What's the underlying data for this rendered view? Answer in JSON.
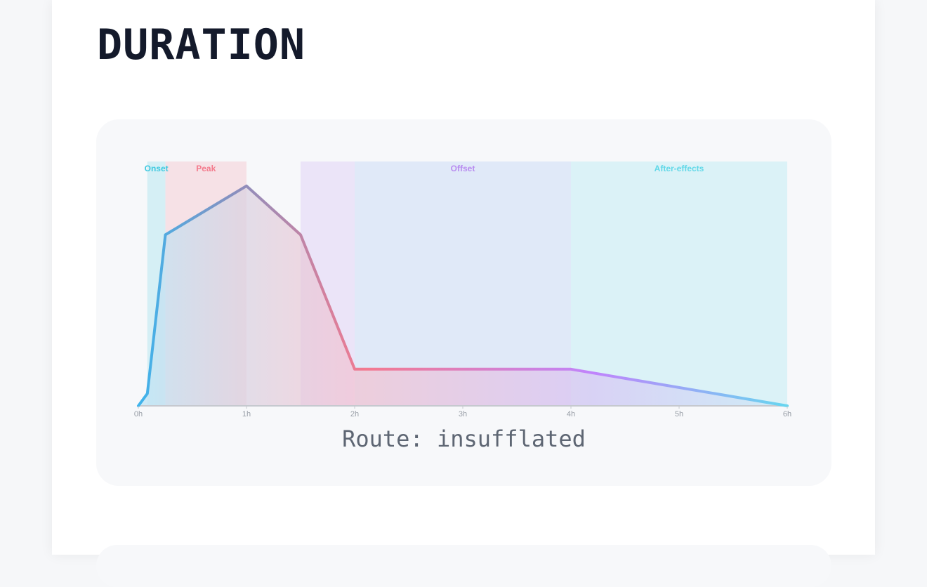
{
  "page": {
    "title": "DURATION"
  },
  "chart_data": {
    "type": "area",
    "x_unit": "hours",
    "xlim": [
      0,
      6
    ],
    "ylim": [
      0,
      100
    ],
    "x_ticks": [
      {
        "value": 0,
        "label": "0h"
      },
      {
        "value": 1,
        "label": "1h"
      },
      {
        "value": 2,
        "label": "2h"
      },
      {
        "value": 3,
        "label": "3h"
      },
      {
        "value": 4,
        "label": "4h"
      },
      {
        "value": 5,
        "label": "5h"
      },
      {
        "value": 6,
        "label": "6h"
      }
    ],
    "phases": [
      {
        "label": "Onset",
        "start": 0.083,
        "end": 0.25,
        "color": "#3ec9e0",
        "label_color": "#3ec9e0"
      },
      {
        "label": "Peak",
        "start": 0.25,
        "end": 1.0,
        "color": "#f47a8c",
        "label_color": "#f47a8c"
      },
      {
        "label": "",
        "start": 1.5,
        "end": 2.0,
        "color": "#b98cf0",
        "label_color": "#b98cf0"
      },
      {
        "label": "Offset",
        "start": 2.0,
        "end": 4.0,
        "color": "#7aa8ee",
        "label_color": "#b98cf0"
      },
      {
        "label": "After-effects",
        "start": 4.0,
        "end": 6.0,
        "color": "#61d8e8",
        "label_color": "#61d8e8"
      }
    ],
    "series": [
      {
        "x": [
          0,
          0.083,
          0.25,
          1.0,
          1.5,
          2.0,
          4.0,
          6.0
        ],
        "y": [
          0,
          5,
          70,
          90,
          70,
          15,
          15,
          0
        ]
      }
    ],
    "line_colors": [
      "#3eb4ec",
      "#8a8fbe",
      "#f37a90",
      "#c084fc",
      "#67d6ef"
    ],
    "caption": "Route: insufflated"
  }
}
